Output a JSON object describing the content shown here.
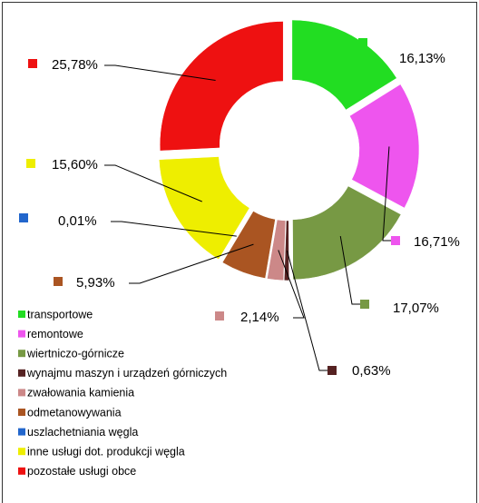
{
  "chart_data": {
    "type": "donut",
    "categories": [
      "transportowe",
      "remontowe",
      "wiertniczo-górnicze",
      "wynajmu maszyn i urządzeń górniczych",
      "zwałowania kamienia",
      "odmetanowywania",
      "uszlachetniania węgla",
      "inne usługi dot. produkcji węgla",
      "pozostałe usługi obce"
    ],
    "values": [
      16.13,
      16.71,
      17.07,
      0.63,
      2.14,
      5.93,
      0.01,
      15.6,
      25.78
    ],
    "value_labels": [
      "16,13%",
      "16,71%",
      "17,07%",
      "0,63%",
      "2,14%",
      "5,93%",
      "0,01%",
      "15,60%",
      "25,78%"
    ],
    "colors": [
      "#22dd22",
      "#ee55ee",
      "#779944",
      "#552222",
      "#cc8888",
      "#aa5522",
      "#2266cc",
      "#eeee00",
      "#ee1111"
    ],
    "legend": "bottom-left"
  }
}
